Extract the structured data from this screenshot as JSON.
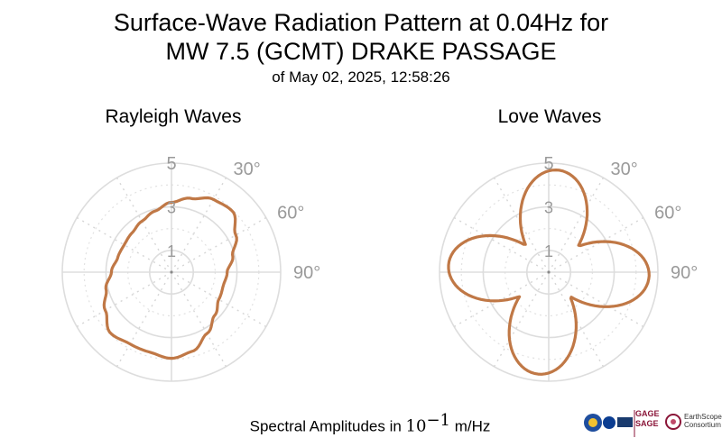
{
  "title": {
    "line1": "Surface-Wave Radiation Pattern at 0.04Hz for",
    "line2": "MW 7.5 (GCMT) DRAKE PASSAGE",
    "line3": "of May 02, 2025, 12:58:26"
  },
  "footer": {
    "prefix": "Spectral Amplitudes in ",
    "base": "10",
    "exponent": "−1",
    "unit": " m/Hz"
  },
  "logos": {
    "gage": "GAGE",
    "sage": "SAGE",
    "earthscope": "EarthScope",
    "consortium": "Consortium"
  },
  "chart_data": [
    {
      "type": "polar-line",
      "title": "Rayleigh Waves",
      "rlim": [
        0,
        5
      ],
      "r_ticks": [
        "1",
        "3",
        "5"
      ],
      "theta_ticks": [
        "30°",
        "60°",
        "90°"
      ],
      "theta_zero": "north",
      "theta_direction": "clockwise",
      "grid": true,
      "line_color": "#c07846",
      "azimuth_deg": [
        0,
        15,
        30,
        45,
        60,
        75,
        90,
        105,
        120,
        135,
        150,
        165,
        180,
        195,
        210,
        225,
        240,
        255,
        270,
        285,
        300,
        315,
        330,
        345
      ],
      "amplitude": [
        3.2,
        3.5,
        3.85,
        3.95,
        3.4,
        2.9,
        2.55,
        2.45,
        2.5,
        2.8,
        3.25,
        3.75,
        3.95,
        3.8,
        3.8,
        3.95,
        3.5,
        3.1,
        2.75,
        2.55,
        2.5,
        2.55,
        2.7,
        2.9
      ]
    },
    {
      "type": "polar-line",
      "title": "Love Waves",
      "rlim": [
        0,
        5
      ],
      "r_ticks": [
        "1",
        "3",
        "5"
      ],
      "theta_ticks": [
        "30°",
        "60°",
        "90°"
      ],
      "theta_zero": "north",
      "theta_direction": "clockwise",
      "grid": true,
      "line_color": "#c07846",
      "lobes": [
        {
          "azimuth_deg": 5,
          "amplitude": 4.7
        },
        {
          "azimuth_deg": 92,
          "amplitude": 4.6
        },
        {
          "azimuth_deg": 186,
          "amplitude": 4.7
        },
        {
          "azimuth_deg": 274,
          "amplitude": 4.6
        }
      ],
      "lobe_exponent": 3
    }
  ]
}
